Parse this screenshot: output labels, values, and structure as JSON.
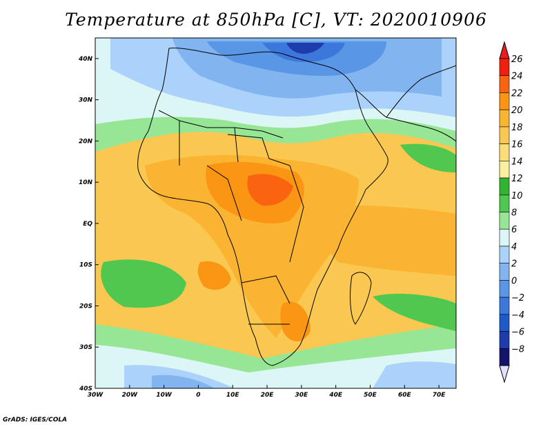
{
  "title": "Temperature at 850hPa [C], VT: 2020010906",
  "credit": "GrADS: IGES/COLA",
  "map": {
    "lon_range": [
      -30,
      75
    ],
    "lat_range": [
      -40,
      45
    ],
    "lon_ticks": [
      {
        "value": -30,
        "label": "30W"
      },
      {
        "value": -20,
        "label": "20W"
      },
      {
        "value": -10,
        "label": "10W"
      },
      {
        "value": 0,
        "label": "0"
      },
      {
        "value": 10,
        "label": "10E"
      },
      {
        "value": 20,
        "label": "20E"
      },
      {
        "value": 30,
        "label": "30E"
      },
      {
        "value": 40,
        "label": "40E"
      },
      {
        "value": 50,
        "label": "50E"
      },
      {
        "value": 60,
        "label": "60E"
      },
      {
        "value": 70,
        "label": "70E"
      }
    ],
    "lat_ticks": [
      {
        "value": 40,
        "label": "40N"
      },
      {
        "value": 30,
        "label": "30N"
      },
      {
        "value": 20,
        "label": "20N"
      },
      {
        "value": 10,
        "label": "10N"
      },
      {
        "value": 0,
        "label": "EQ"
      },
      {
        "value": -10,
        "label": "10S"
      },
      {
        "value": -20,
        "label": "20S"
      },
      {
        "value": -30,
        "label": "30S"
      },
      {
        "value": -40,
        "label": "40S"
      }
    ]
  },
  "colorbar": {
    "labels": [
      "26",
      "24",
      "22",
      "20",
      "18",
      "16",
      "14",
      "12",
      "10",
      "8",
      "6",
      "4",
      "2",
      "0",
      "−2",
      "−4",
      "−6",
      "−8"
    ],
    "colors": [
      "#f02010",
      "#fa6410",
      "#fa9614",
      "#fab432",
      "#fac850",
      "#fadc78",
      "#faf0a0",
      "#32b432",
      "#50c850",
      "#96e696",
      "#dcf5f5",
      "#aad2fa",
      "#82b4f0",
      "#5a96e6",
      "#3c78dc",
      "#1e5ac8",
      "#1e3caa",
      "#14146e"
    ],
    "top_color": "#e61e1e",
    "bottom_color": "#e0e0ff"
  }
}
